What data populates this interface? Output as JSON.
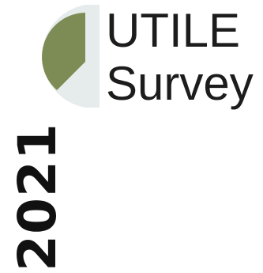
{
  "title": {
    "line1": "UTILE",
    "line2": "Survey"
  },
  "year": "2021",
  "colors": {
    "accent": "#7d8c55",
    "logo_background": "#e6eceb",
    "text": "#1c1c1c",
    "year_text": "#111111"
  },
  "icons": {
    "logo": "partial-pie-logo"
  }
}
